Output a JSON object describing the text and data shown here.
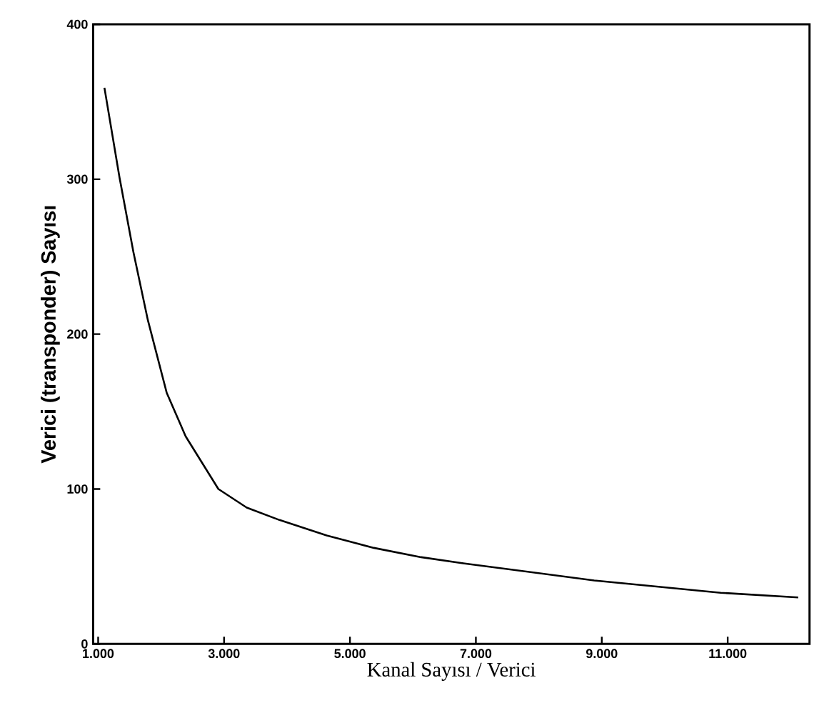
{
  "chart_data": {
    "type": "line",
    "xlabel": "Kanal Sayısı / Verici",
    "ylabel": "Verici (transponder) Sayısı",
    "x": [
      1100,
      1340,
      1560,
      1790,
      2090,
      2390,
      2910,
      3360,
      3880,
      4630,
      5380,
      6130,
      6800,
      8880,
      10890,
      12120
    ],
    "series": [
      {
        "color": "#000000",
        "values": [
          359,
          301,
          253,
          209,
          162,
          134,
          100,
          88,
          80,
          70,
          62,
          56,
          52,
          41,
          33,
          30
        ]
      }
    ],
    "xlim": [
      920,
      12300
    ],
    "ylim": [
      0,
      400
    ],
    "xticks": [
      {
        "value": 1000,
        "label": "1.000"
      },
      {
        "value": 3000,
        "label": "3.000"
      },
      {
        "value": 5000,
        "label": "5.000"
      },
      {
        "value": 7000,
        "label": "7.000"
      },
      {
        "value": 9000,
        "label": "9.000"
      },
      {
        "value": 11000,
        "label": "11.000"
      }
    ],
    "yticks": [
      0,
      100,
      200,
      300,
      400
    ],
    "grid": false,
    "marker": "none",
    "line_style": "solid"
  }
}
